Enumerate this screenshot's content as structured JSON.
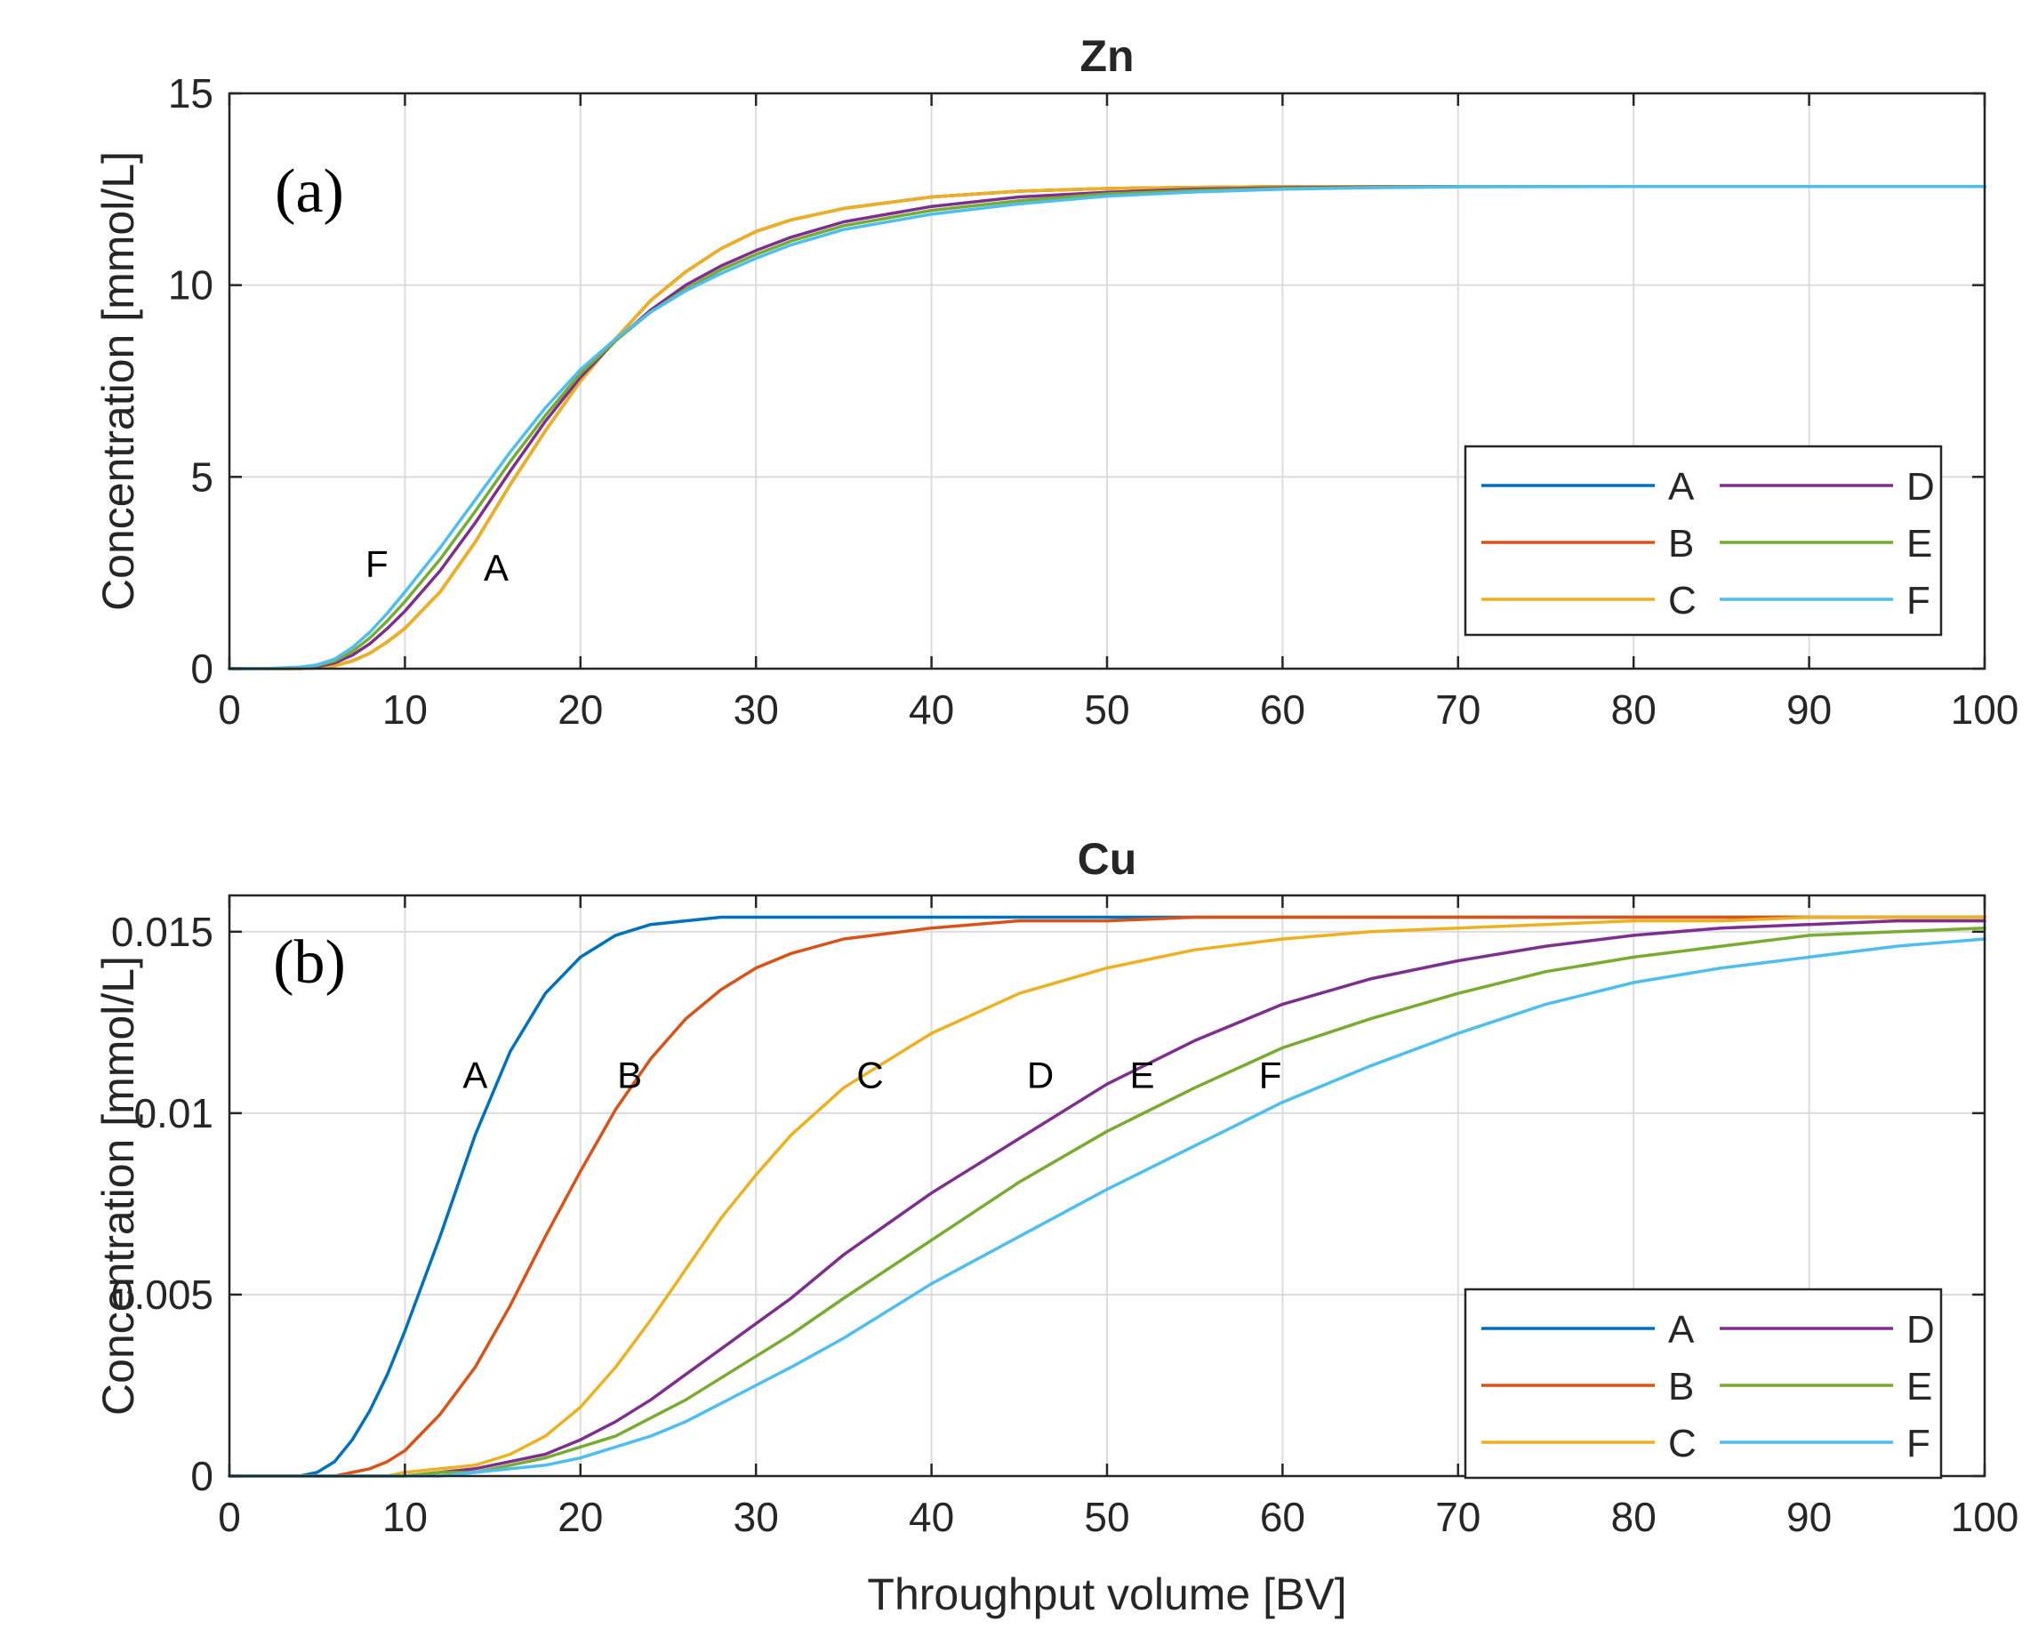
{
  "chart_data": [
    {
      "type": "line",
      "title": "Zn",
      "panel_label": "(a)",
      "xlabel": "",
      "ylabel": "Concentration [mmol/L]",
      "xlim": [
        0,
        100
      ],
      "ylim": [
        0,
        15
      ],
      "xticks": [
        0,
        10,
        20,
        30,
        40,
        50,
        60,
        70,
        80,
        90,
        100
      ],
      "yticks": [
        0,
        5,
        10,
        15
      ],
      "ytick_labels": [
        "0",
        "5",
        "10",
        "15"
      ],
      "grid": true,
      "legend_position": "bottom-right",
      "x": [
        0,
        2,
        4,
        5,
        6,
        7,
        8,
        9,
        10,
        12,
        14,
        16,
        18,
        20,
        22,
        24,
        26,
        28,
        30,
        32,
        35,
        40,
        45,
        50,
        55,
        60,
        65,
        70,
        80,
        90,
        100
      ],
      "series": [
        {
          "name": "A",
          "color": "#0072BD",
          "values": [
            0,
            0,
            0,
            0.02,
            0.08,
            0.2,
            0.4,
            0.7,
            1.05,
            2.0,
            3.3,
            4.8,
            6.2,
            7.5,
            8.6,
            9.6,
            10.35,
            10.95,
            11.4,
            11.7,
            12.0,
            12.3,
            12.45,
            12.52,
            12.55,
            12.57,
            12.57,
            12.57,
            12.57,
            12.57,
            12.57
          ]
        },
        {
          "name": "B",
          "color": "#D95319",
          "values": [
            0,
            0,
            0,
            0.02,
            0.08,
            0.2,
            0.4,
            0.7,
            1.05,
            2.0,
            3.3,
            4.8,
            6.2,
            7.5,
            8.6,
            9.6,
            10.35,
            10.95,
            11.4,
            11.7,
            12.0,
            12.3,
            12.45,
            12.52,
            12.55,
            12.57,
            12.57,
            12.57,
            12.57,
            12.57,
            12.57
          ]
        },
        {
          "name": "C",
          "color": "#EDB120",
          "values": [
            0,
            0,
            0,
            0.02,
            0.08,
            0.2,
            0.4,
            0.7,
            1.05,
            2.0,
            3.3,
            4.8,
            6.2,
            7.5,
            8.6,
            9.6,
            10.35,
            10.95,
            11.4,
            11.7,
            12.0,
            12.3,
            12.45,
            12.52,
            12.55,
            12.57,
            12.57,
            12.57,
            12.57,
            12.57,
            12.57
          ]
        },
        {
          "name": "D",
          "color": "#7E2F8E",
          "values": [
            0,
            0,
            0.02,
            0.05,
            0.15,
            0.35,
            0.65,
            1.05,
            1.5,
            2.55,
            3.8,
            5.15,
            6.45,
            7.6,
            8.55,
            9.35,
            10.0,
            10.5,
            10.9,
            11.25,
            11.65,
            12.05,
            12.3,
            12.42,
            12.5,
            12.54,
            12.56,
            12.57,
            12.57,
            12.57,
            12.57
          ]
        },
        {
          "name": "E",
          "color": "#77AC30",
          "values": [
            0,
            0,
            0.03,
            0.08,
            0.2,
            0.45,
            0.8,
            1.25,
            1.75,
            2.85,
            4.1,
            5.4,
            6.6,
            7.7,
            8.55,
            9.3,
            9.9,
            10.4,
            10.8,
            11.15,
            11.55,
            11.95,
            12.2,
            12.38,
            12.47,
            12.52,
            12.55,
            12.57,
            12.57,
            12.57,
            12.57
          ]
        },
        {
          "name": "F",
          "color": "#4DBEEE",
          "values": [
            0,
            0,
            0.04,
            0.1,
            0.25,
            0.55,
            0.95,
            1.45,
            2.0,
            3.15,
            4.4,
            5.65,
            6.8,
            7.8,
            8.6,
            9.3,
            9.85,
            10.3,
            10.7,
            11.05,
            11.45,
            11.85,
            12.12,
            12.32,
            12.43,
            12.5,
            12.54,
            12.56,
            12.57,
            12.57,
            12.57
          ]
        }
      ],
      "annotations": [
        {
          "text": "F",
          "x": 8.4,
          "y": 2.4
        },
        {
          "text": "A",
          "x": 15.2,
          "y": 2.3
        }
      ]
    },
    {
      "type": "line",
      "title": "Cu",
      "panel_label": "(b)",
      "xlabel": "Throughput volume [BV]",
      "ylabel": "Concentration [mmol/L]",
      "xlim": [
        0,
        100
      ],
      "ylim": [
        0,
        0.016
      ],
      "xticks": [
        0,
        10,
        20,
        30,
        40,
        50,
        60,
        70,
        80,
        90,
        100
      ],
      "yticks": [
        0,
        0.005,
        0.01,
        0.015
      ],
      "ytick_labels": [
        "0",
        "0.005",
        "0.01",
        "0.015"
      ],
      "grid": true,
      "legend_position": "bottom-right",
      "x": [
        0,
        2,
        4,
        5,
        6,
        7,
        8,
        9,
        10,
        12,
        14,
        16,
        18,
        20,
        22,
        24,
        26,
        28,
        30,
        32,
        35,
        40,
        45,
        50,
        55,
        60,
        65,
        70,
        75,
        80,
        85,
        90,
        95,
        100
      ],
      "series": [
        {
          "name": "A",
          "color": "#0072BD",
          "values": [
            0,
            0,
            0,
            0.0001,
            0.0004,
            0.001,
            0.0018,
            0.0028,
            0.004,
            0.0066,
            0.0094,
            0.0117,
            0.0133,
            0.0143,
            0.0149,
            0.0152,
            0.0153,
            0.0154,
            0.0154,
            0.0154,
            0.0154,
            0.0154,
            0.0154,
            0.0154,
            0.0154,
            0.0154,
            0.0154,
            0.0154,
            0.0154,
            0.0154,
            0.0154,
            0.0154,
            0.0154,
            0.0154
          ]
        },
        {
          "name": "B",
          "color": "#D95319",
          "values": [
            0,
            0,
            0,
            0,
            0,
            0.0001,
            0.0002,
            0.0004,
            0.0007,
            0.0017,
            0.003,
            0.0047,
            0.0066,
            0.0084,
            0.0101,
            0.0115,
            0.0126,
            0.0134,
            0.014,
            0.0144,
            0.0148,
            0.0151,
            0.0153,
            0.0153,
            0.0154,
            0.0154,
            0.0154,
            0.0154,
            0.0154,
            0.0154,
            0.0154,
            0.0154,
            0.0154,
            0.0154
          ]
        },
        {
          "name": "C",
          "color": "#EDB120",
          "values": [
            0,
            0,
            0,
            0,
            0,
            0,
            0,
            0,
            0.0001,
            0.0002,
            0.0003,
            0.0006,
            0.0011,
            0.0019,
            0.003,
            0.0043,
            0.0057,
            0.0071,
            0.0083,
            0.0094,
            0.0107,
            0.0122,
            0.0133,
            0.014,
            0.0145,
            0.0148,
            0.015,
            0.0151,
            0.0152,
            0.0153,
            0.0153,
            0.0154,
            0.0154,
            0.0154
          ]
        },
        {
          "name": "D",
          "color": "#7E2F8E",
          "values": [
            0,
            0,
            0,
            0,
            0,
            0,
            0,
            0,
            0,
            0.0001,
            0.0002,
            0.0004,
            0.0006,
            0.001,
            0.0015,
            0.0021,
            0.0028,
            0.0035,
            0.0042,
            0.0049,
            0.0061,
            0.0078,
            0.0093,
            0.0108,
            0.012,
            0.013,
            0.0137,
            0.0142,
            0.0146,
            0.0149,
            0.0151,
            0.0152,
            0.0153,
            0.0153
          ]
        },
        {
          "name": "E",
          "color": "#77AC30",
          "values": [
            0,
            0,
            0,
            0,
            0,
            0,
            0,
            0,
            0,
            0.0001,
            0.0001,
            0.0003,
            0.0005,
            0.0008,
            0.0011,
            0.0016,
            0.0021,
            0.0027,
            0.0033,
            0.0039,
            0.0049,
            0.0065,
            0.0081,
            0.0095,
            0.0107,
            0.0118,
            0.0126,
            0.0133,
            0.0139,
            0.0143,
            0.0146,
            0.0149,
            0.015,
            0.0151
          ]
        },
        {
          "name": "F",
          "color": "#4DBEEE",
          "values": [
            0,
            0,
            0,
            0,
            0,
            0,
            0,
            0,
            0,
            0,
            0.0001,
            0.0002,
            0.0003,
            0.0005,
            0.0008,
            0.0011,
            0.0015,
            0.002,
            0.0025,
            0.003,
            0.0038,
            0.0053,
            0.0066,
            0.0079,
            0.0091,
            0.0103,
            0.0113,
            0.0122,
            0.013,
            0.0136,
            0.014,
            0.0143,
            0.0146,
            0.0148
          ]
        }
      ],
      "annotations": [
        {
          "text": "A",
          "x": 14.0,
          "y": 0.0107
        },
        {
          "text": "B",
          "x": 22.8,
          "y": 0.0107
        },
        {
          "text": "C",
          "x": 36.5,
          "y": 0.0107
        },
        {
          "text": "D",
          "x": 46.2,
          "y": 0.0107
        },
        {
          "text": "E",
          "x": 52.0,
          "y": 0.0107
        },
        {
          "text": "F",
          "x": 59.3,
          "y": 0.0107
        }
      ]
    }
  ]
}
